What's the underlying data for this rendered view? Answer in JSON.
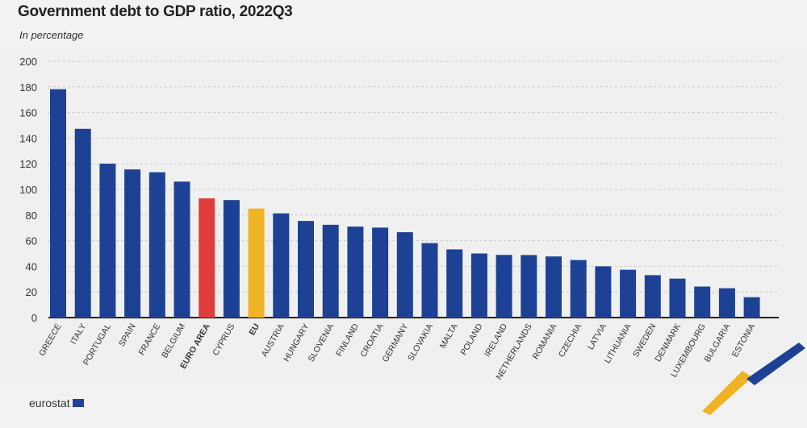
{
  "chart_data": {
    "type": "bar",
    "title": "Government debt to GDP ratio, 2022Q3",
    "subtitle": "In percentage",
    "categories": [
      "GREECE",
      "ITALY",
      "PORTUGAL",
      "SPAIN",
      "FRANCE",
      "BELGIUM",
      "EURO AREA",
      "CYPRUS",
      "EU",
      "AUSTRIA",
      "HUNGARY",
      "SLOVENIA",
      "FINLAND",
      "CROATIA",
      "GERMANY",
      "SLOVAKIA",
      "MALTA",
      "POLAND",
      "IRELAND",
      "NETHERLANDS",
      "ROMANIA",
      "CZECHIA",
      "LATVIA",
      "LITHUANIA",
      "SWEDEN",
      "DENMARK",
      "LUXEMBOURG",
      "BULGARIA",
      "ESTONIA"
    ],
    "values": [
      178.2,
      147.3,
      120.1,
      115.6,
      113.4,
      106.1,
      93.0,
      91.7,
      85.1,
      81.3,
      75.4,
      72.4,
      71.0,
      70.2,
      66.6,
      58.1,
      53.2,
      50.0,
      48.9,
      48.8,
      47.7,
      44.9,
      40.0,
      37.3,
      33.1,
      30.4,
      24.2,
      22.9,
      15.9
    ],
    "colors": {
      "default": "#1d4295",
      "EURO AREA": "#e03c3c",
      "EU": "#f0b323"
    },
    "bold_categories": [
      "EURO AREA",
      "EU"
    ],
    "ylim": [
      0,
      200
    ],
    "yticks": [
      0,
      20,
      40,
      60,
      80,
      100,
      120,
      140,
      160,
      180,
      200
    ],
    "grid": true,
    "legend": "none"
  },
  "footer": {
    "brand": "eurostat"
  }
}
